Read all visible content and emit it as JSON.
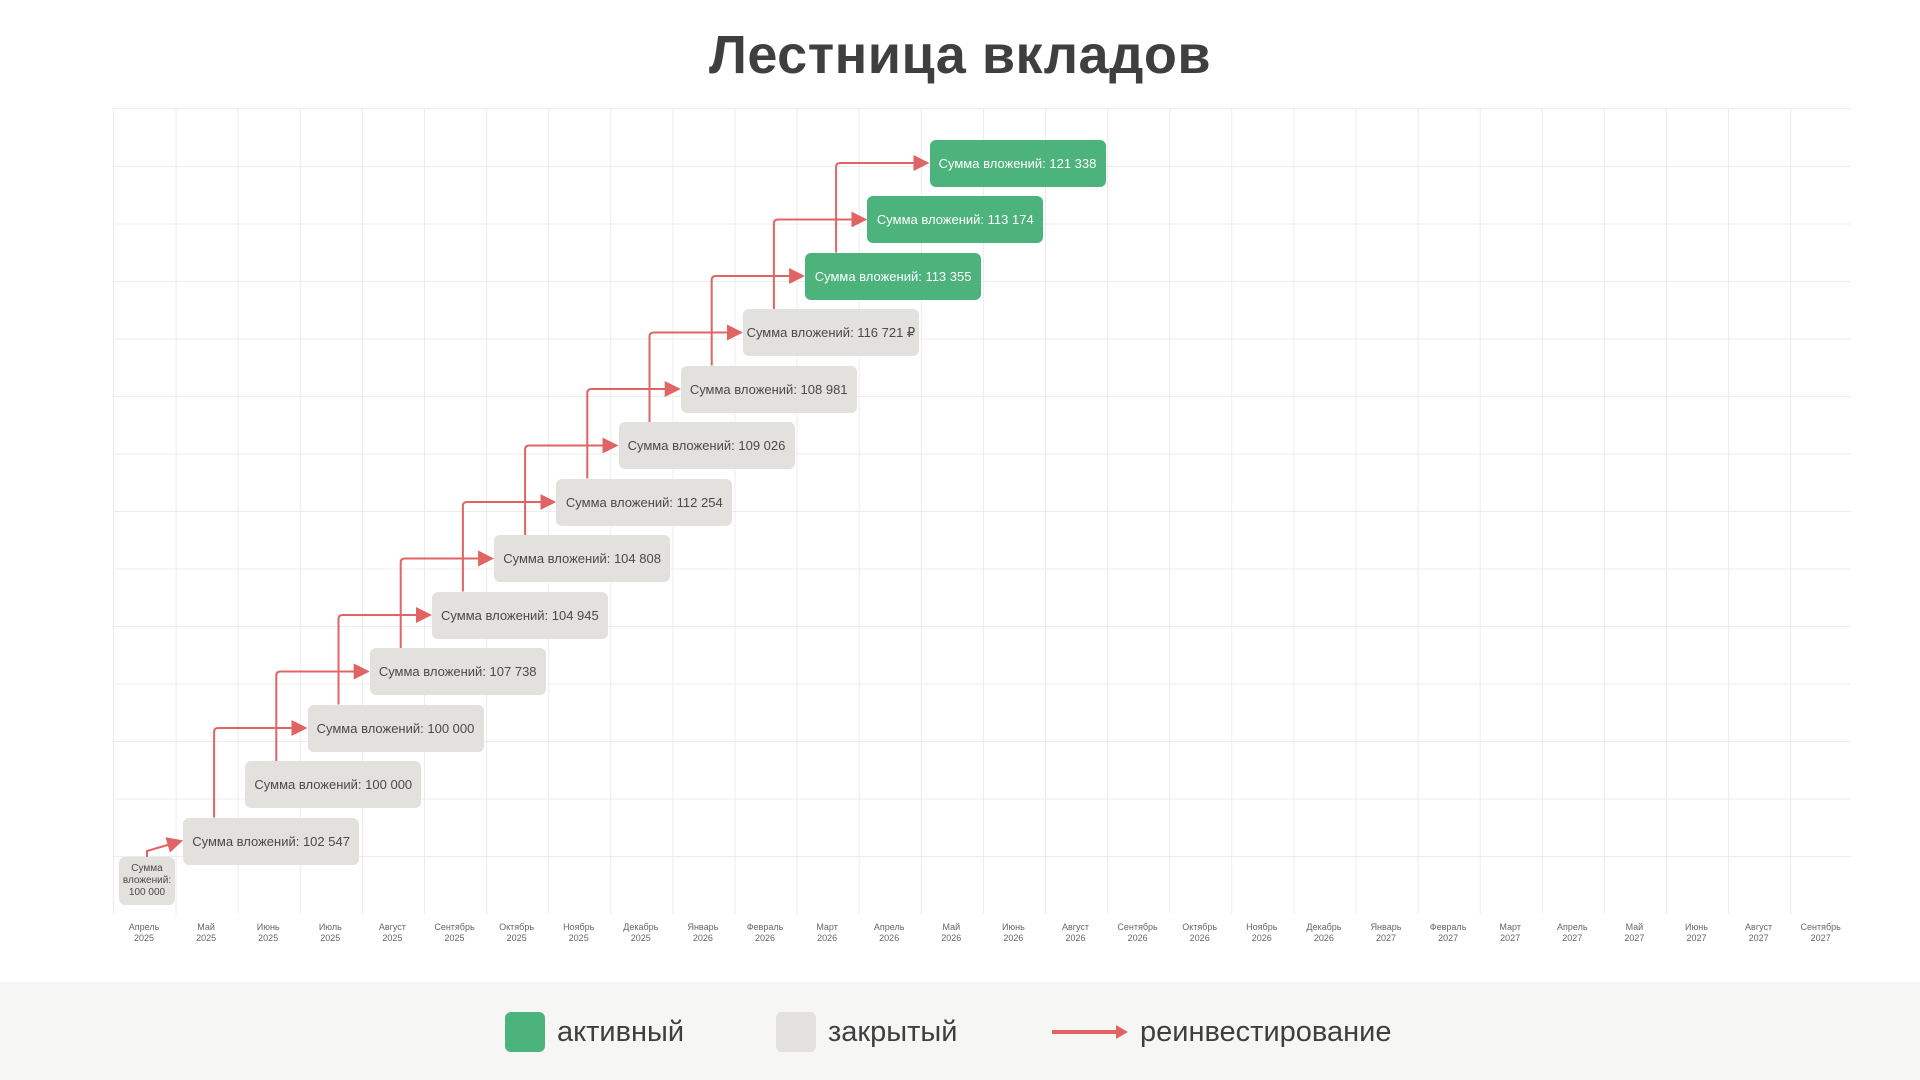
{
  "title": "Лестница вкладов",
  "months": [
    [
      "Апрель",
      "2025"
    ],
    [
      "Май",
      "2025"
    ],
    [
      "Июнь",
      "2025"
    ],
    [
      "Июль",
      "2025"
    ],
    [
      "Август",
      "2025"
    ],
    [
      "Сентябрь",
      "2025"
    ],
    [
      "Октябрь",
      "2025"
    ],
    [
      "Ноябрь",
      "2025"
    ],
    [
      "Декабрь",
      "2025"
    ],
    [
      "Январь",
      "2026"
    ],
    [
      "Февраль",
      "2026"
    ],
    [
      "Март",
      "2026"
    ],
    [
      "Апрель",
      "2026"
    ],
    [
      "Май",
      "2026"
    ],
    [
      "Июнь",
      "2026"
    ],
    [
      "Август",
      "2026"
    ],
    [
      "Сентябрь",
      "2026"
    ],
    [
      "Октябрь",
      "2026"
    ],
    [
      "Ноябрь",
      "2026"
    ],
    [
      "Декабрь",
      "2026"
    ],
    [
      "Январь",
      "2027"
    ],
    [
      "Февраль",
      "2027"
    ],
    [
      "Март",
      "2027"
    ],
    [
      "Апрель",
      "2027"
    ],
    [
      "Май",
      "2027"
    ],
    [
      "Июнь",
      "2027"
    ],
    [
      "Август",
      "2027"
    ],
    [
      "Сентябрь",
      "2027"
    ]
  ],
  "deposits": [
    {
      "text": "Сумма вложений: 100 000",
      "status": "closed",
      "month_index": 0
    },
    {
      "text": "Сумма вложений: 102 547",
      "status": "closed",
      "month_index": 1
    },
    {
      "text": "Сумма вложений: 100 000",
      "status": "closed",
      "month_index": 2
    },
    {
      "text": "Сумма вложений: 100 000",
      "status": "closed",
      "month_index": 3
    },
    {
      "text": "Сумма вложений: 107 738",
      "status": "closed",
      "month_index": 4
    },
    {
      "text": "Сумма вложений: 104 945",
      "status": "closed",
      "month_index": 5
    },
    {
      "text": "Сумма вложений: 104 808",
      "status": "closed",
      "month_index": 6
    },
    {
      "text": "Сумма вложений: 112 254",
      "status": "closed",
      "month_index": 7
    },
    {
      "text": "Сумма вложений: 109 026",
      "status": "closed",
      "month_index": 8
    },
    {
      "text": "Сумма вложений: 108 981",
      "status": "closed",
      "month_index": 9
    },
    {
      "text": "Сумма вложений: 116 721 ₽",
      "status": "closed",
      "month_index": 10
    },
    {
      "text": "Сумма вложений: 113 355",
      "status": "active",
      "month_index": 11
    },
    {
      "text": "Сумма вложений: 113 174",
      "status": "active",
      "month_index": 12
    },
    {
      "text": "Сумма вложений: 121 338",
      "status": "active",
      "month_index": 13
    }
  ],
  "legend": {
    "active_label": "активный",
    "closed_label": "закрытый",
    "reinvest_label": "реинвестирование"
  },
  "colors": {
    "active": "#4bb37b",
    "closed": "#e3e1dd",
    "arrow": "#e06464",
    "grid": "#ececec"
  }
}
